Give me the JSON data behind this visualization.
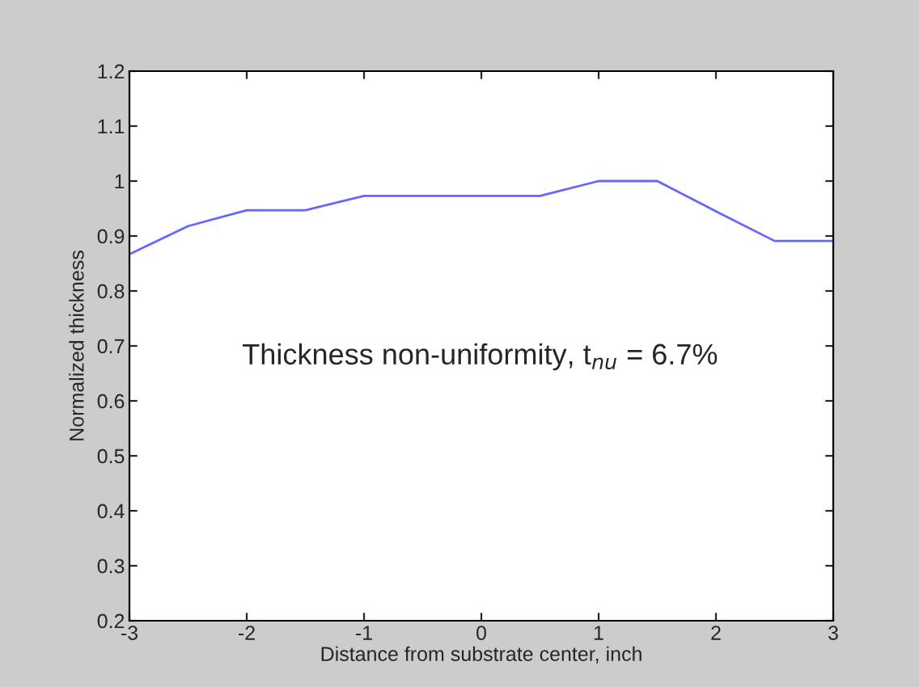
{
  "chart_data": {
    "type": "line",
    "xlabel": "Distance from substrate center, inch",
    "ylabel": "Normalized thickness",
    "annotations": [
      "Thickness non-uniformity, t$_{nu}$ = 6.7%"
    ],
    "x": [
      -3,
      -2.5,
      -2,
      -1.5,
      -1,
      -0.5,
      0,
      0.5,
      1,
      1.5,
      2,
      2.5,
      3
    ],
    "series": [
      {
        "color": "#6666ff",
        "values": [
          0.867,
          0.918,
          0.947,
          0.947,
          0.973,
          0.973,
          0.973,
          0.973,
          1.0,
          1.0,
          0.945,
          0.891,
          0.891
        ]
      }
    ],
    "xlim": [
      -3,
      3
    ],
    "xticks": [
      -3,
      -2,
      -1,
      0,
      1,
      2,
      3
    ],
    "ylim": [
      0.2,
      1.2
    ],
    "yticks": [
      0.2,
      0.3,
      0.4,
      0.5,
      0.6,
      0.7,
      0.8,
      0.9,
      1,
      1.1,
      1.2
    ],
    "grid": false,
    "legend": false,
    "marker": "none",
    "line_style": "solid"
  }
}
